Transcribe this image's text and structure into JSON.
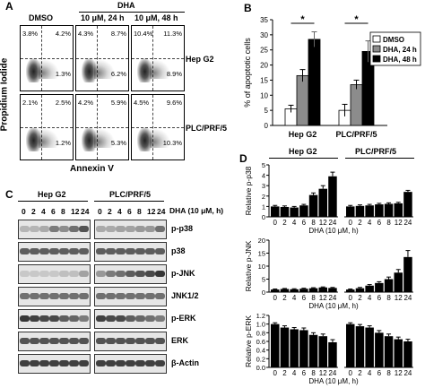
{
  "panelA": {
    "letter": "A",
    "col_headers": [
      "DMSO",
      "10 μM, 24 h",
      "10 μM, 48 h"
    ],
    "treatment_header": "DHA",
    "y_label": "Propidium Iodide",
    "x_label": "Annexin V",
    "rows": [
      {
        "label": "Hep G2",
        "quads": [
          {
            "ul": "3.8%",
            "ur": "4.2%",
            "lr": "1.3%"
          },
          {
            "ul": "4.3%",
            "ur": "8.7%",
            "lr": "6.2%"
          },
          {
            "ul": "10.4%",
            "ur": "11.3%",
            "lr": "8.9%"
          }
        ]
      },
      {
        "label": "PLC/PRF/5",
        "quads": [
          {
            "ul": "2.1%",
            "ur": "2.5%",
            "lr": "1.2%"
          },
          {
            "ul": "4.2%",
            "ur": "5.9%",
            "lr": "5.3%"
          },
          {
            "ul": "4.5%",
            "ur": "9.6%",
            "lr": "10.3%"
          }
        ]
      }
    ]
  },
  "panelB": {
    "letter": "B",
    "star": "*",
    "chart_data": {
      "type": "bar",
      "categories": [
        "Hep G2",
        "PLC/PRF/5"
      ],
      "ylabel": "% of apoptotic cells",
      "ylim": [
        0,
        35
      ],
      "yticks": [
        0,
        5,
        10,
        15,
        20,
        25,
        30,
        35
      ],
      "legend_position": "right",
      "series": [
        {
          "name": "DMSO",
          "color": "#ffffff",
          "values": [
            5.5,
            5.0
          ],
          "errors": [
            1.2,
            2.0
          ]
        },
        {
          "name": "DHA, 24 h",
          "color": "#8c8c8c",
          "values": [
            16.5,
            13.5
          ],
          "errors": [
            2.0,
            1.5
          ]
        },
        {
          "name": "DHA, 48 h",
          "color": "#000000",
          "values": [
            28.5,
            24.5
          ],
          "errors": [
            2.5,
            3.5
          ]
        }
      ]
    }
  },
  "panelC": {
    "letter": "C",
    "cell_lines": [
      "Hep G2",
      "PLC/PRF/5"
    ],
    "timepoints": [
      "0",
      "2",
      "4",
      "6",
      "8",
      "12",
      "24"
    ],
    "x_label": "DHA (10 μM, h)",
    "proteins": [
      "p-p38",
      "p38",
      "p-JNK",
      "JNK1/2",
      "p-ERK",
      "ERK",
      "β-Actin"
    ]
  },
  "panelD": {
    "letter": "D",
    "cell_lines": [
      "Hep G2",
      "PLC/PRF/5"
    ],
    "x_label": "DHA (10 μM, h)",
    "tick_labels": [
      "0",
      "2",
      "4",
      "6",
      "8",
      "12",
      "24"
    ],
    "chart_data": [
      {
        "type": "bar",
        "ylabel": "Relative p-p38",
        "ylim": [
          0,
          5
        ],
        "yticks": [
          0,
          1,
          2,
          3,
          4,
          5
        ],
        "series": [
          {
            "name": "Hep G2",
            "values": [
              1.0,
              0.95,
              0.9,
              1.1,
              2.1,
              2.7,
              3.9
            ],
            "errors": [
              0.1,
              0.1,
              0.1,
              0.1,
              0.2,
              0.3,
              0.4
            ]
          },
          {
            "name": "PLC/PRF/5",
            "values": [
              1.0,
              1.05,
              1.1,
              1.2,
              1.25,
              1.3,
              2.4
            ],
            "errors": [
              0.1,
              0.1,
              0.1,
              0.1,
              0.1,
              0.1,
              0.15
            ]
          }
        ]
      },
      {
        "type": "bar",
        "ylabel": "Relative p-JNK",
        "ylim": [
          0,
          20
        ],
        "yticks": [
          0,
          5,
          10,
          15,
          20
        ],
        "series": [
          {
            "name": "Hep G2",
            "values": [
              1.0,
              1.2,
              1.1,
              1.3,
              1.5,
              1.8,
              1.6
            ],
            "errors": [
              0.2,
              0.2,
              0.2,
              0.2,
              0.2,
              0.2,
              0.2
            ]
          },
          {
            "name": "PLC/PRF/5",
            "values": [
              1.0,
              1.5,
              2.5,
              3.5,
              5.0,
              7.5,
              13.5
            ],
            "errors": [
              0.2,
              0.3,
              0.4,
              0.5,
              0.8,
              1.2,
              2.5
            ]
          }
        ]
      },
      {
        "type": "bar",
        "ylabel": "Relative p-ERK",
        "ylim": [
          0,
          1.2
        ],
        "yticks": [
          0.0,
          0.2,
          0.4,
          0.6,
          0.8,
          1.0,
          1.2
        ],
        "series": [
          {
            "name": "Hep G2",
            "values": [
              1.0,
              0.92,
              0.88,
              0.86,
              0.75,
              0.72,
              0.58
            ],
            "errors": [
              0.03,
              0.04,
              0.04,
              0.05,
              0.05,
              0.05,
              0.06
            ]
          },
          {
            "name": "PLC/PRF/5",
            "values": [
              1.0,
              0.95,
              0.92,
              0.8,
              0.72,
              0.65,
              0.6
            ],
            "errors": [
              0.03,
              0.04,
              0.04,
              0.05,
              0.05,
              0.05,
              0.05
            ]
          }
        ]
      }
    ]
  }
}
